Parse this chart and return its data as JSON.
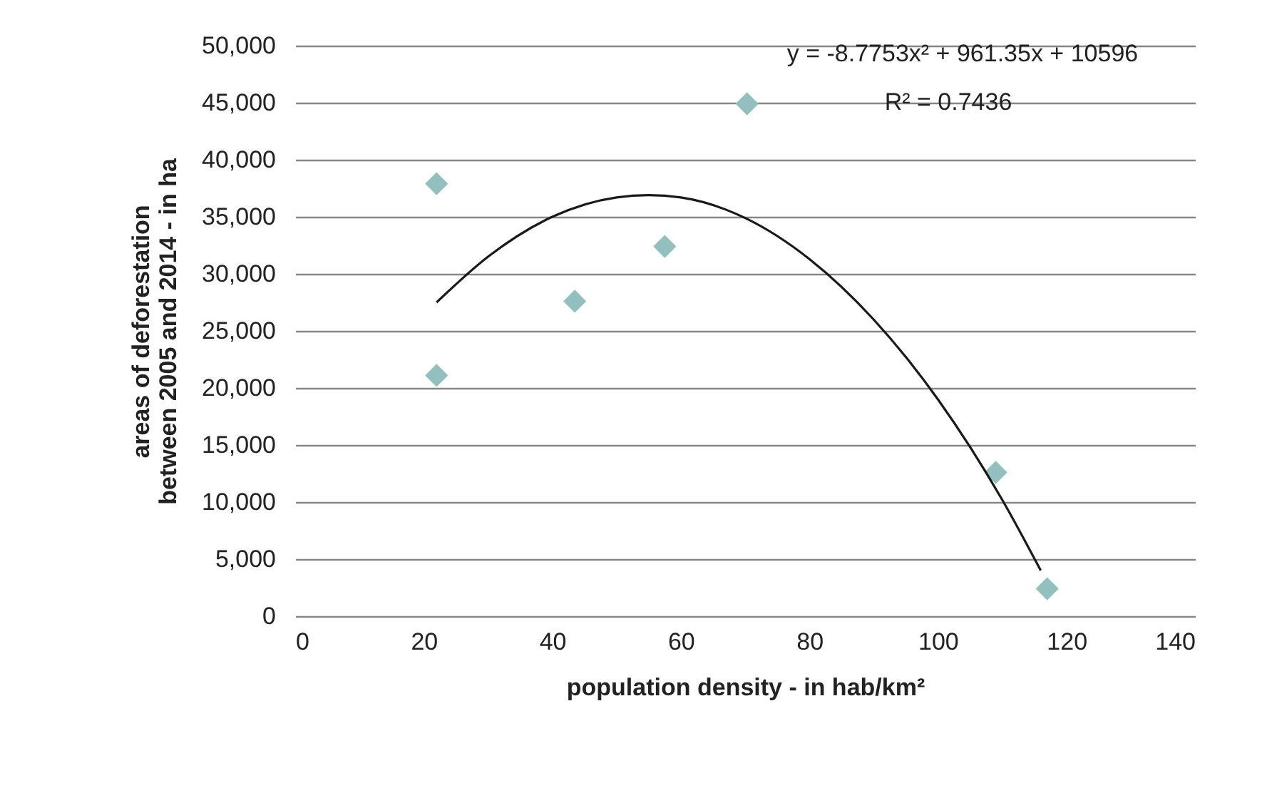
{
  "chart_data": {
    "type": "scatter",
    "xlabel": "population density - in hab/km²",
    "ylabel": "areas of deforestation between 2005 and 2014 - in ha",
    "annotations": [
      "y = -8.7753x² + 961.35x + 10596",
      "R² = 0.7436"
    ],
    "xlim": [
      0,
      140
    ],
    "xticks": [
      0,
      20,
      40,
      60,
      80,
      100,
      120,
      140
    ],
    "ylim": [
      0,
      50000
    ],
    "yticks": [
      {
        "value": 0,
        "label": "0"
      },
      {
        "value": 5000,
        "label": "5,000"
      },
      {
        "value": 10000,
        "label": "10,000"
      },
      {
        "value": 15000,
        "label": "15,000"
      },
      {
        "value": 20000,
        "label": "20,000"
      },
      {
        "value": 25000,
        "label": "25,000"
      },
      {
        "value": 30000,
        "label": "30,000"
      },
      {
        "value": 35000,
        "label": "35,000"
      },
      {
        "value": 40000,
        "label": "40,000"
      },
      {
        "value": 45000,
        "label": "45,000"
      },
      {
        "value": 50000,
        "label": "50,000"
      }
    ],
    "grid": "y",
    "marker": "diamond",
    "series": [
      {
        "type": "scatter",
        "color": "#93c0bf",
        "x": [
          22,
          22,
          43.5,
          57.5,
          70.3,
          109,
          117
        ],
        "values": [
          37900,
          21100,
          27600,
          32400,
          44900,
          12600,
          2400
        ]
      },
      {
        "type": "line",
        "color": "#1a1a1a",
        "marker": "none",
        "x": [
          22,
          30,
          40,
          50,
          55,
          60,
          70,
          80,
          90,
          100,
          110,
          116
        ],
        "values": [
          27500,
          31500,
          35000,
          36700,
          36900,
          36700,
          34900,
          31300,
          26000,
          19000,
          10200,
          4000
        ]
      }
    ]
  }
}
